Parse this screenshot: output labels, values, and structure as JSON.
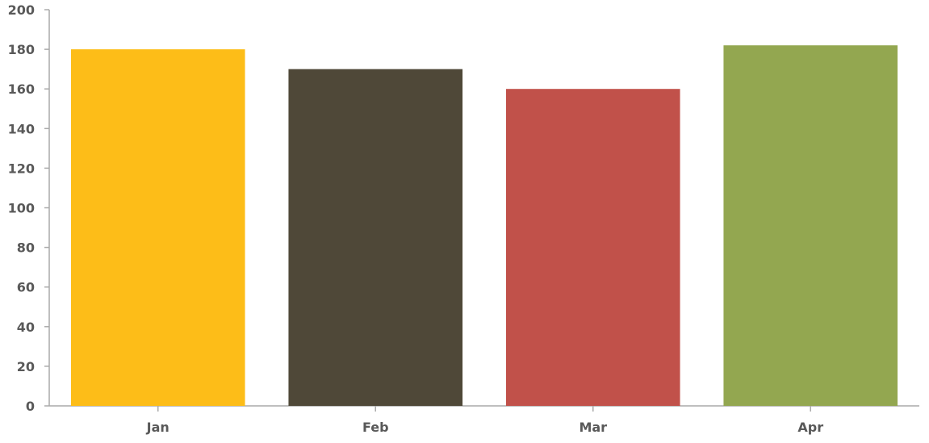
{
  "chart_data": {
    "type": "bar",
    "categories": [
      "Jan",
      "Feb",
      "Mar",
      "Apr"
    ],
    "values": [
      180,
      170,
      160,
      182
    ],
    "colors": [
      "#FDBD18",
      "#4F4838",
      "#C1514A",
      "#93A750"
    ],
    "ylim": [
      0,
      200
    ],
    "yticks": [
      "0",
      "20",
      "40",
      "60",
      "80",
      "100",
      "120",
      "140",
      "160",
      "180",
      "200"
    ],
    "title": "",
    "xlabel": "",
    "ylabel": "",
    "grid": false,
    "legend": "none"
  }
}
